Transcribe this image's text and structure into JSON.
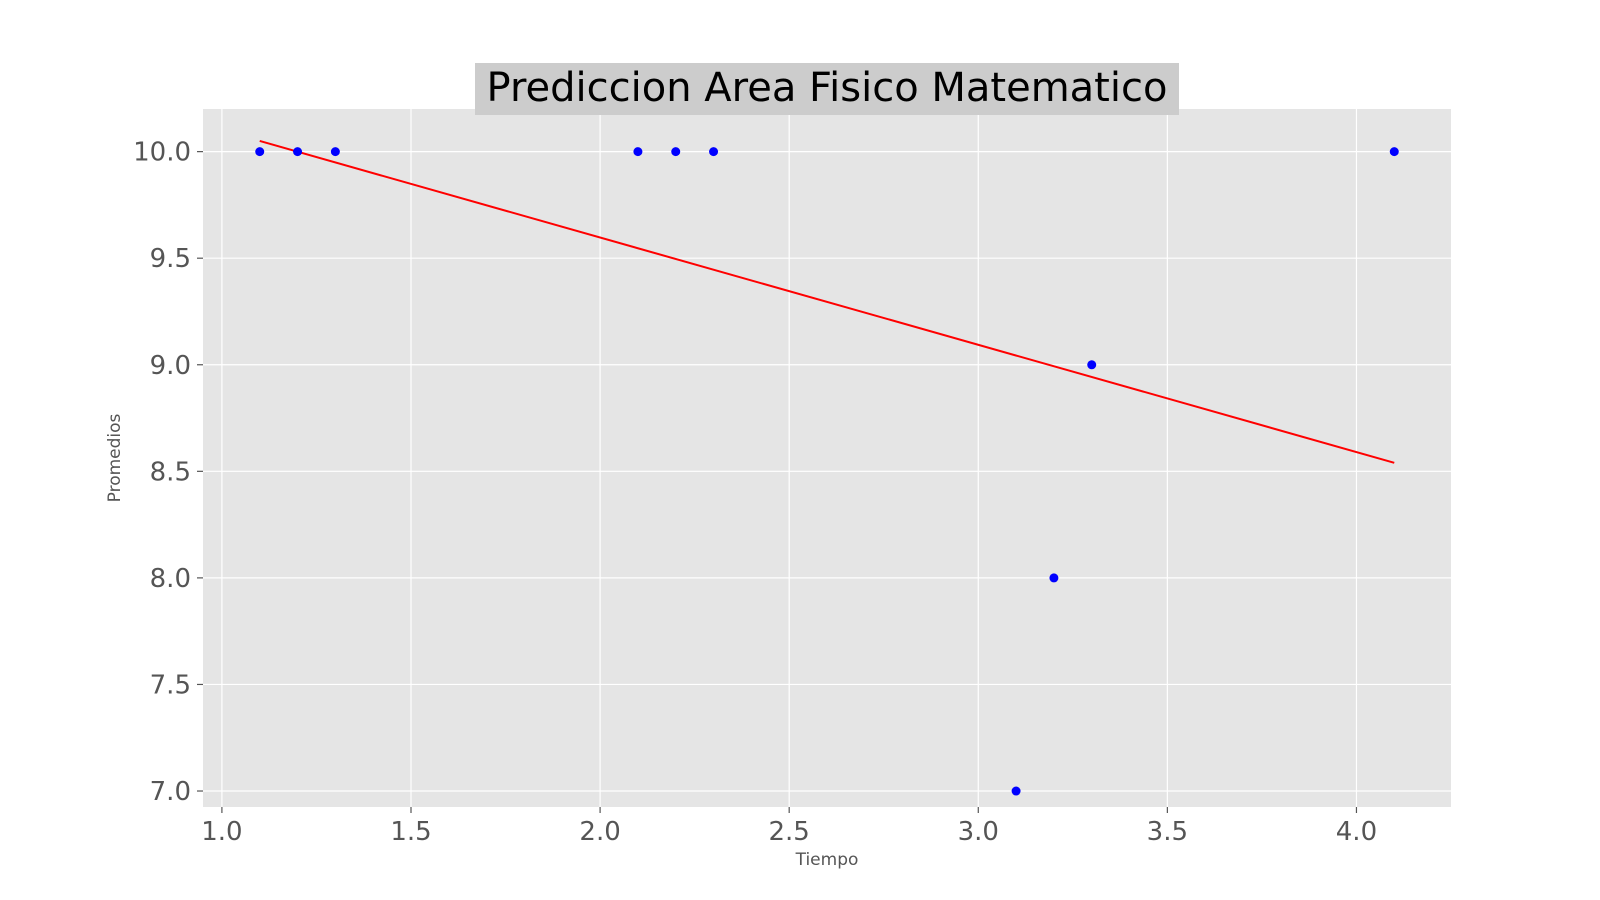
{
  "chart_data": {
    "type": "scatter",
    "title": "Prediccion Area Fisico Matematico",
    "xlabel": "Tiempo",
    "ylabel": "Promedios",
    "xlim": [
      0.95,
      4.25
    ],
    "ylim": [
      6.925,
      10.2
    ],
    "xticks": [
      1.0,
      1.5,
      2.0,
      2.5,
      3.0,
      3.5,
      4.0
    ],
    "xtick_labels": [
      "1.0",
      "1.5",
      "2.0",
      "2.5",
      "3.0",
      "3.5",
      "4.0"
    ],
    "yticks": [
      7.0,
      7.5,
      8.0,
      8.5,
      9.0,
      9.5,
      10.0
    ],
    "ytick_labels": [
      "7.0",
      "7.5",
      "8.0",
      "8.5",
      "9.0",
      "9.5",
      "10.0"
    ],
    "grid": true,
    "series": [
      {
        "kind": "points",
        "color": "#0000ff",
        "x": [
          1.1,
          1.2,
          1.3,
          2.1,
          2.2,
          2.3,
          3.1,
          3.2,
          3.3,
          4.1
        ],
        "y": [
          10.0,
          10.0,
          10.0,
          10.0,
          10.0,
          10.0,
          7.0,
          8.0,
          9.0,
          10.0
        ]
      },
      {
        "kind": "line",
        "color": "#ff0000",
        "x": [
          1.1,
          4.1
        ],
        "y": [
          10.05,
          8.54
        ]
      }
    ],
    "colors": {
      "plot_background": "#e5e5e5",
      "grid": "#ffffff",
      "title_background": "#cccccc"
    }
  }
}
